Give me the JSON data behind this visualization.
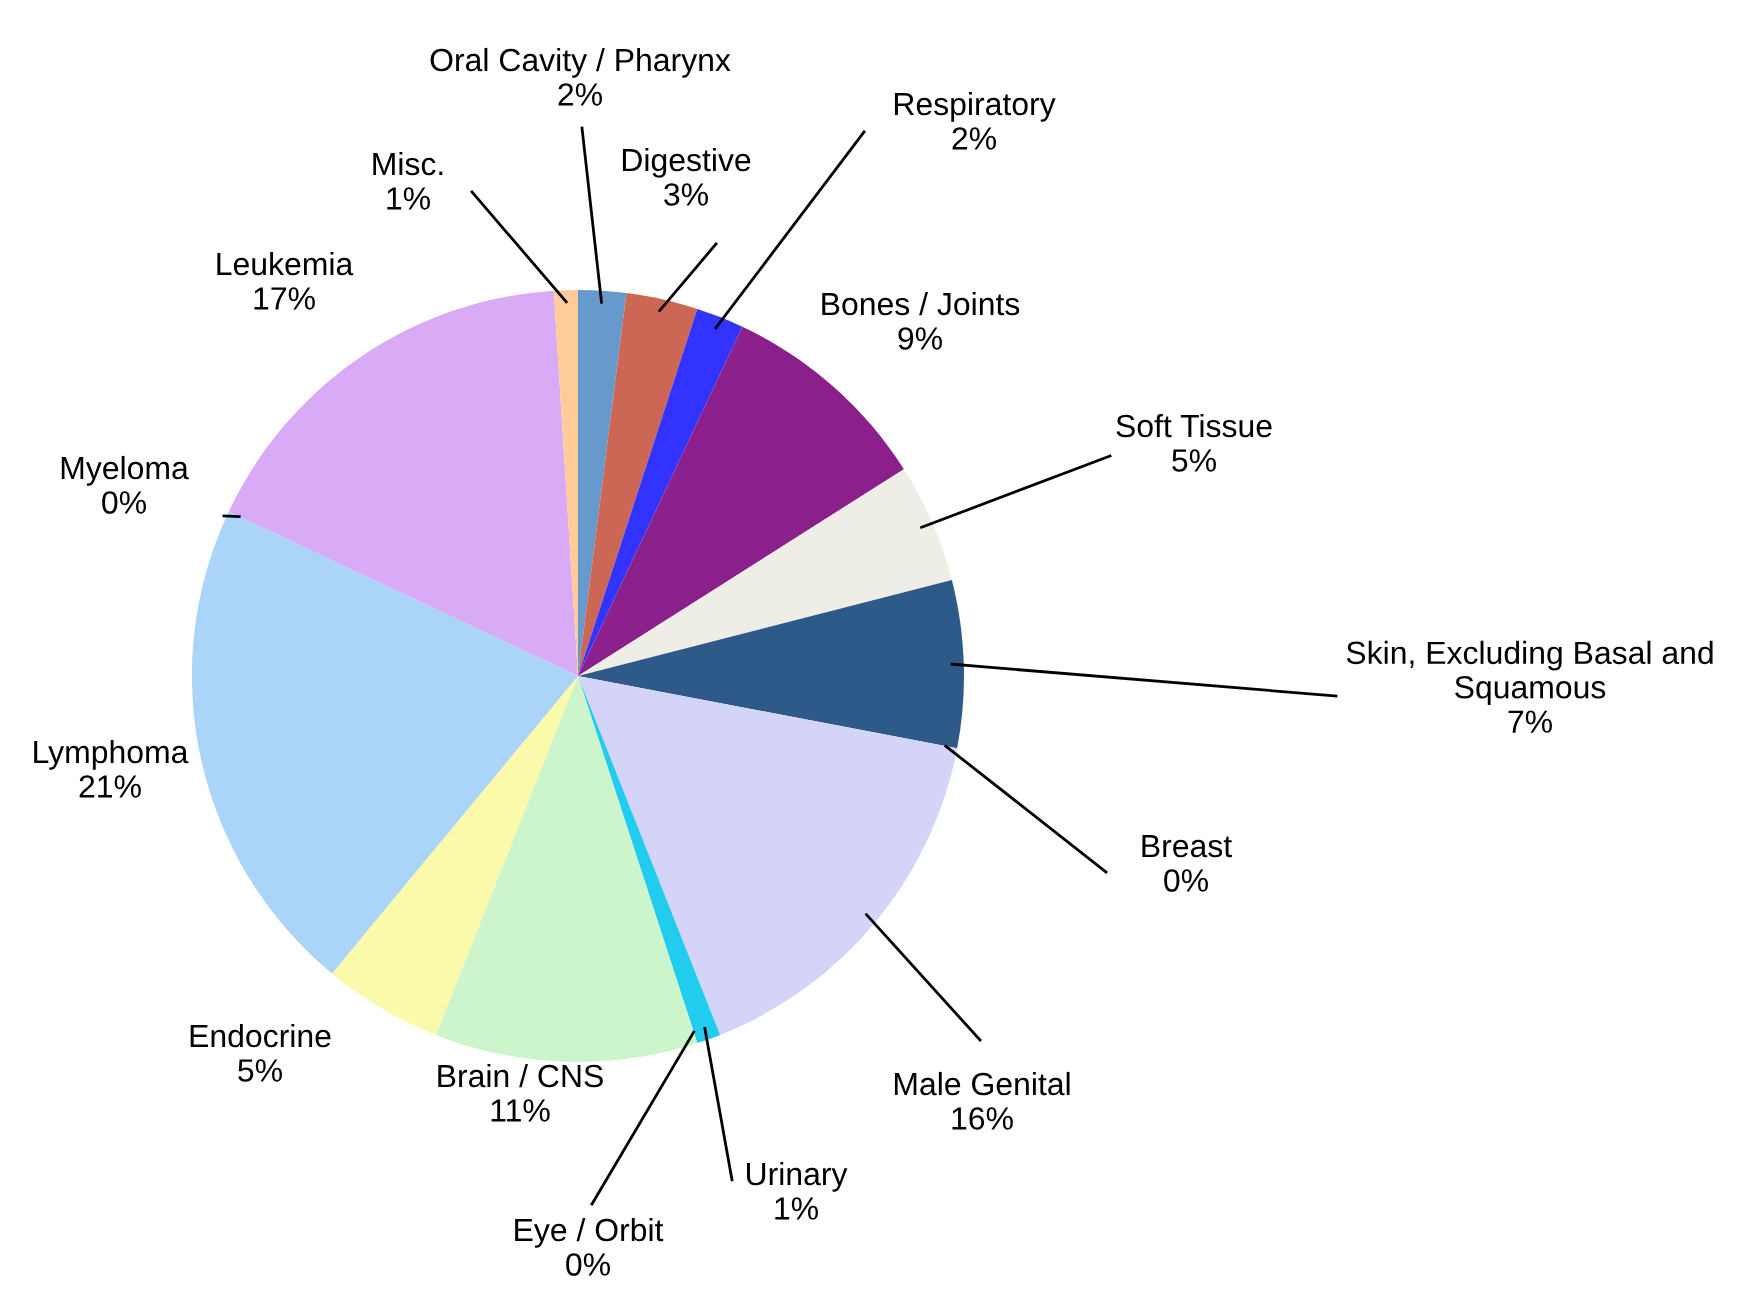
{
  "chart_data": {
    "type": "pie",
    "categories": [
      "Oral Cavity / Pharynx",
      "Digestive",
      "Respiratory",
      "Bones / Joints",
      "Soft Tissue",
      "Skin, Excluding Basal and\nSquamous",
      "Breast",
      "Male Genital",
      "Urinary",
      "Eye / Orbit",
      "Brain / CNS",
      "Endocrine",
      "Lymphoma",
      "Myeloma",
      "Leukemia",
      "Misc."
    ],
    "values": [
      2,
      3,
      2,
      9,
      5,
      7,
      0,
      16,
      1,
      0,
      11,
      5,
      21,
      0,
      17,
      1
    ],
    "value_labels": [
      "2%",
      "3%",
      "2%",
      "9%",
      "5%",
      "7%",
      "0%",
      "16%",
      "1%",
      "0%",
      "11%",
      "5%",
      "21%",
      "0%",
      "17%",
      "1%"
    ],
    "colors": [
      "#6699cc",
      "#cc6655",
      "#3333ff",
      "#8b1f8b",
      "#eeeee6",
      "#2e5a8a",
      "#ff99cc",
      "#d4d4f8",
      "#22ccee",
      "#ffffff",
      "#ccf5cc",
      "#fafaaa",
      "#aad4f8",
      "#ff99cc",
      "#d9aaf5",
      "#ffcc99"
    ],
    "legend": false
  }
}
